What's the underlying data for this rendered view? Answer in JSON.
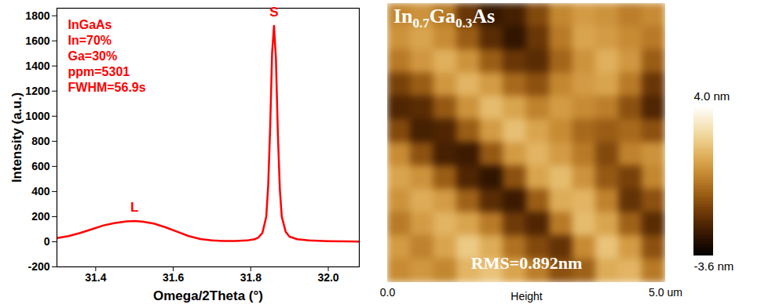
{
  "chart_data": [
    {
      "type": "line",
      "xlabel": "Omega/2Theta (°)",
      "ylabel": "Intensity (a.u.)",
      "color": "#ff0000",
      "x": [
        31.3,
        31.33,
        31.36,
        31.39,
        31.42,
        31.45,
        31.48,
        31.5,
        31.52,
        31.55,
        31.58,
        31.61,
        31.64,
        31.67,
        31.7,
        31.73,
        31.76,
        31.79,
        31.81,
        31.82,
        31.83,
        31.84,
        31.845,
        31.85,
        31.855,
        31.86,
        31.865,
        31.87,
        31.875,
        31.88,
        31.89,
        31.9,
        31.92,
        31.95,
        32.0,
        32.05,
        32.08
      ],
      "values": [
        30,
        45,
        70,
        100,
        130,
        150,
        162,
        165,
        160,
        145,
        115,
        80,
        45,
        22,
        10,
        6,
        6,
        10,
        20,
        35,
        70,
        200,
        450,
        900,
        1500,
        1720,
        1450,
        850,
        420,
        200,
        80,
        40,
        20,
        10,
        5,
        3,
        2
      ],
      "xlim": [
        31.3,
        32.08
      ],
      "xticks": [
        31.4,
        31.6,
        31.8,
        {
          "value": 32,
          "label": "32.0"
        }
      ],
      "ylim": [
        -200,
        1860
      ],
      "yticks": [
        -200,
        0,
        200,
        400,
        600,
        800,
        1000,
        1200,
        1400,
        1600,
        1800
      ],
      "annotations": [
        "InGaAs",
        "In=70%",
        "Ga=30%",
        "ppm=5301",
        "FWHM=56.9s"
      ],
      "peak_labels": [
        {
          "text": "L",
          "x": 31.5,
          "y": 165
        },
        {
          "text": "S",
          "x": 31.86,
          "y": 1720
        }
      ]
    },
    {
      "type": "heatmap",
      "title": "In0.7Ga0.3As",
      "annotations": [
        "RMS=0.892nm"
      ],
      "xlabel": "Height",
      "xlim": [
        0,
        5
      ],
      "xticks": [
        {
          "value": 0,
          "label": "0.0"
        },
        {
          "value": 5,
          "label": "5.0 um"
        }
      ],
      "ylim": [
        0,
        5
      ],
      "tick_labels": "x",
      "cells": [
        [
          0.5,
          0.8,
          0.2,
          -1.5,
          -2.5,
          -2.2,
          -1.0,
          0.5,
          1.0,
          0.8,
          0.3,
          0.6
        ],
        [
          0.8,
          1.2,
          0.6,
          -0.5,
          -1.8,
          -2.6,
          -1.5,
          0.2,
          1.2,
          1.0,
          0.6,
          0.2
        ],
        [
          0.2,
          0.9,
          1.5,
          0.8,
          -0.5,
          -1.5,
          -1.8,
          -0.3,
          0.8,
          1.5,
          0.9,
          -0.5
        ],
        [
          -1.2,
          -0.5,
          0.9,
          1.6,
          1.0,
          -0.2,
          -0.8,
          0.5,
          1.0,
          1.2,
          0.2,
          -1.5
        ],
        [
          -2.0,
          -1.8,
          -0.6,
          0.8,
          1.8,
          1.2,
          0.4,
          1.0,
          0.6,
          0.3,
          -0.8,
          -2.0
        ],
        [
          -1.0,
          -2.2,
          -2.0,
          -0.5,
          1.0,
          1.9,
          1.2,
          0.6,
          -0.2,
          -0.5,
          -0.2,
          -0.8
        ],
        [
          0.6,
          -0.8,
          -2.2,
          -2.4,
          -0.6,
          1.0,
          1.6,
          1.0,
          0.2,
          -1.0,
          0.4,
          0.8
        ],
        [
          1.2,
          0.8,
          -0.5,
          -2.0,
          -2.6,
          -0.8,
          1.2,
          1.8,
          0.8,
          -0.6,
          -1.2,
          0.5
        ],
        [
          0.8,
          1.4,
          1.0,
          -0.4,
          -1.8,
          -2.4,
          -0.5,
          1.4,
          1.6,
          0.4,
          -1.6,
          -0.8
        ],
        [
          0.2,
          1.0,
          1.6,
          1.2,
          0.2,
          -1.4,
          -2.0,
          0.2,
          1.8,
          1.2,
          -0.4,
          -1.8
        ],
        [
          1.0,
          0.4,
          1.2,
          2.2,
          1.4,
          0.0,
          -1.0,
          -1.6,
          0.6,
          2.0,
          1.0,
          -0.8
        ],
        [
          0.6,
          0.9,
          0.5,
          1.6,
          2.0,
          1.2,
          0.3,
          -0.8,
          -0.4,
          1.4,
          1.6,
          0.2
        ]
      ],
      "colorbar": {
        "range": [
          -3.6,
          4.0
        ],
        "ticks": [
          {
            "value": 4.0,
            "label": "4.0 nm"
          },
          {
            "value": -3.6,
            "label": "-3.6 nm"
          }
        ]
      }
    }
  ]
}
